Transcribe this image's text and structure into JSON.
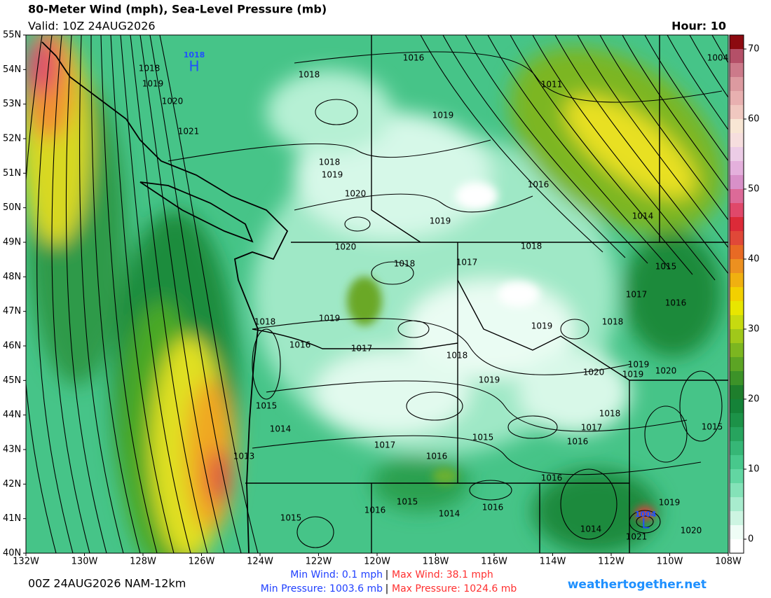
{
  "header": {
    "title": "80-Meter Wind (mph), Sea-Level Pressure (mb)",
    "valid": "Valid: 10Z 24AUG2026",
    "hour": "Hour: 10"
  },
  "map": {
    "lat_labels": [
      "55N",
      "54N",
      "53N",
      "52N",
      "51N",
      "50N",
      "49N",
      "48N",
      "47N",
      "46N",
      "45N",
      "44N",
      "43N",
      "42N",
      "41N",
      "40N"
    ],
    "lon_labels": [
      "132W",
      "130W",
      "128W",
      "126W",
      "124W",
      "122W",
      "120W",
      "118W",
      "116W",
      "114W",
      "112W",
      "110W",
      "108W"
    ],
    "high": {
      "pressure": "1018",
      "letter": "H"
    },
    "low": {
      "pressure": "1004",
      "letter": "L"
    },
    "isobar_labels": [
      "1016",
      "1004",
      "1018",
      "1018",
      "1011",
      "1019",
      "1020",
      "1019",
      "1021",
      "1018",
      "1019",
      "1016",
      "1020",
      "1019",
      "1014",
      "1020",
      "1018",
      "1018",
      "1017",
      "1015",
      "1017",
      "1016",
      "1019",
      "1018",
      "1019",
      "1018",
      "1016",
      "1017",
      "1018",
      "1019",
      "1020",
      "1020",
      "1019",
      "1019",
      "1018",
      "1015",
      "1015",
      "1014",
      "1017",
      "1015",
      "1016",
      "1017",
      "1016",
      "1013",
      "1016",
      "1015",
      "1016",
      "1016",
      "1014",
      "1015",
      "1019",
      "1014",
      "1021",
      "1020"
    ]
  },
  "colorbar": {
    "range": [
      -2,
      72
    ],
    "ticks": [
      0,
      10,
      20,
      30,
      40,
      50,
      60,
      70
    ],
    "colors": [
      "#ffffff",
      "#effdf6",
      "#cdf5e2",
      "#a8ecce",
      "#84e2b8",
      "#62d6a2",
      "#48c88c",
      "#36b676",
      "#27a45e",
      "#1c9248",
      "#158238",
      "#1e7e2c",
      "#3c9228",
      "#5ca424",
      "#7cb620",
      "#a0c81a",
      "#c6da10",
      "#e8e600",
      "#f2d000",
      "#f0b010",
      "#ec9020",
      "#e86a24",
      "#e04838",
      "#dc2a38",
      "#e0486a",
      "#dc6a98",
      "#d890c8",
      "#e4b0dc",
      "#eccce6",
      "#f6dede",
      "#f8e6d4",
      "#f0c8c0",
      "#e8b0b0",
      "#dc9aa0",
      "#cc7a8a",
      "#b45068",
      "#8c0a10"
    ]
  },
  "footer": {
    "run": "00Z 24AUG2026 NAM-12km",
    "min_wind": "Min Wind:   0.1 mph",
    "max_wind": "Max Wind:  38.1 mph",
    "min_pressure": "Min Pressure: 1003.6 mb",
    "max_pressure": "Max Pressure: 1024.6 mb",
    "separator": "|",
    "site": "weathertogether.net"
  }
}
